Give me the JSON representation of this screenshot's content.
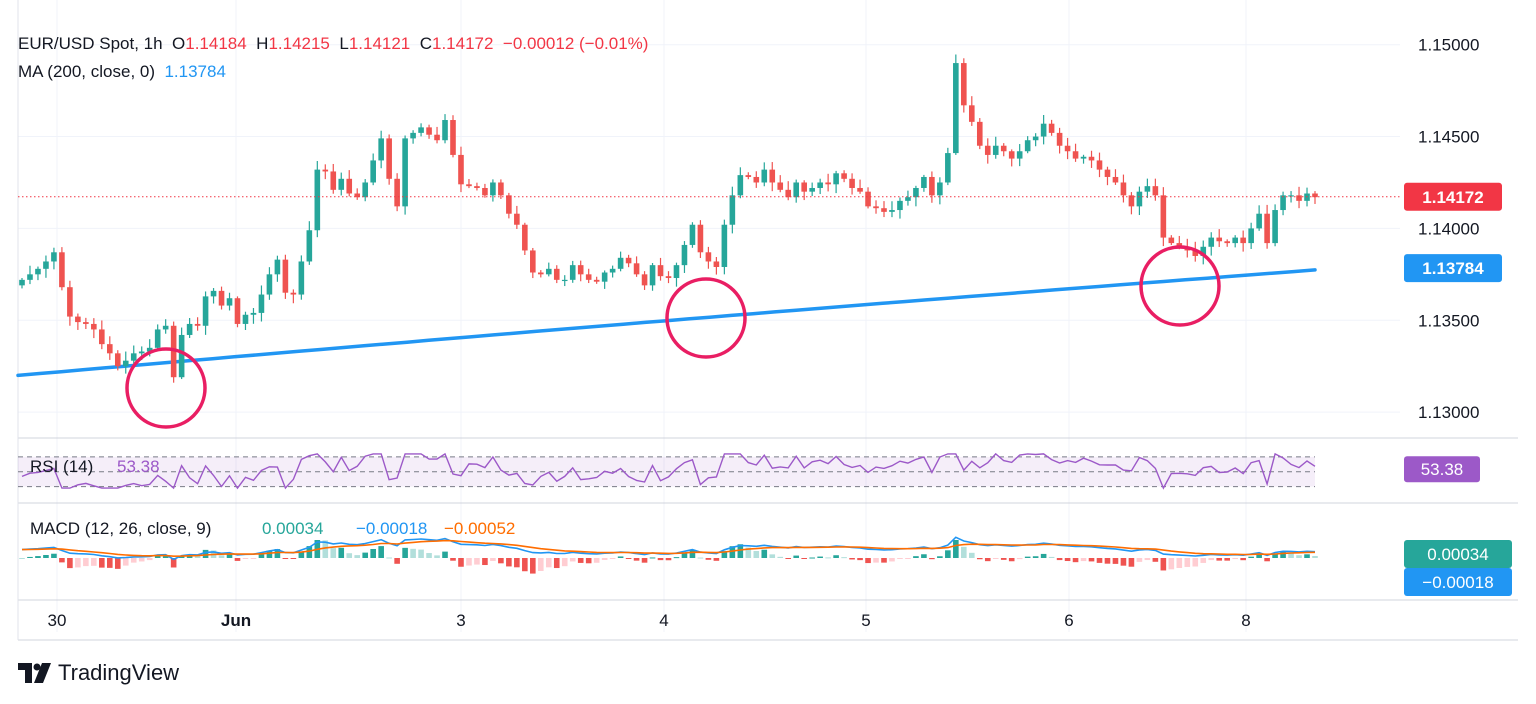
{
  "header": {
    "symbol": "EUR/USD Spot, 1h",
    "o_label": "O",
    "o_value": "1.14184",
    "h_label": "H",
    "h_value": "1.14215",
    "l_label": "L",
    "l_value": "1.14121",
    "c_label": "C",
    "c_value": "1.14172",
    "change": "−0.00012 (−0.01%)",
    "ma_label": "MA (200, close, 0)",
    "ma_value": "1.13784"
  },
  "colors": {
    "up": "#26a69a",
    "down": "#ef5350",
    "ma": "#2196f3",
    "rsi": "#9c59c8",
    "macd": "#2196f3",
    "signal": "#ff6d00",
    "circle": "#e91e63",
    "price_tag": "#f23645"
  },
  "brand": {
    "name": "TradingView"
  },
  "chart_data": [
    {
      "type": "candlestick",
      "title": "EUR/USD Spot, 1h",
      "x_ticks": [
        "30",
        "Jun",
        "3",
        "4",
        "5",
        "6",
        "8"
      ],
      "y_ticks": [
        "1.15000",
        "1.14500",
        "1.14000",
        "1.13500",
        "1.13000"
      ],
      "ylim": [
        1.1287,
        1.1508
      ],
      "last_price": "1.14172",
      "ma_label": "1.13784",
      "close_series": [
        1.1372,
        1.1375,
        1.1378,
        1.1382,
        1.1387,
        1.1368,
        1.1352,
        1.1349,
        1.1348,
        1.1345,
        1.1337,
        1.1332,
        1.1325,
        1.1328,
        1.1332,
        1.1333,
        1.1335,
        1.1345,
        1.1347,
        1.1319,
        1.1342,
        1.1348,
        1.1347,
        1.1363,
        1.1366,
        1.1358,
        1.1362,
        1.1348,
        1.1353,
        1.1354,
        1.1364,
        1.1375,
        1.1383,
        1.1365,
        1.1364,
        1.1382,
        1.1399,
        1.1432,
        1.1431,
        1.1421,
        1.1427,
        1.1419,
        1.1417,
        1.1425,
        1.1437,
        1.1449,
        1.1427,
        1.1412,
        1.1449,
        1.1452,
        1.1455,
        1.1451,
        1.1448,
        1.1459,
        1.144,
        1.1424,
        1.1423,
        1.1422,
        1.1418,
        1.1425,
        1.1418,
        1.1408,
        1.1402,
        1.1388,
        1.1376,
        1.1375,
        1.1378,
        1.1372,
        1.1372,
        1.138,
        1.1375,
        1.1372,
        1.1371,
        1.1376,
        1.1378,
        1.1384,
        1.1381,
        1.1375,
        1.1369,
        1.138,
        1.1374,
        1.1373,
        1.138,
        1.1391,
        1.1402,
        1.1387,
        1.1382,
        1.1379,
        1.1402,
        1.1418,
        1.1429,
        1.1428,
        1.1425,
        1.1432,
        1.1425,
        1.1421,
        1.1417,
        1.1425,
        1.142,
        1.1422,
        1.1425,
        1.1424,
        1.143,
        1.1427,
        1.1422,
        1.142,
        1.1412,
        1.1411,
        1.1409,
        1.141,
        1.1415,
        1.1417,
        1.1422,
        1.1428,
        1.1418,
        1.1425,
        1.1441,
        1.149,
        1.1467,
        1.1458,
        1.1445,
        1.144,
        1.1445,
        1.1442,
        1.1438,
        1.1442,
        1.1448,
        1.145,
        1.1457,
        1.1452,
        1.1445,
        1.1442,
        1.1438,
        1.1439,
        1.1437,
        1.1432,
        1.1428,
        1.1425,
        1.1418,
        1.1412,
        1.142,
        1.1423,
        1.1418,
        1.1395,
        1.1392,
        1.139,
        1.1388,
        1.1385,
        1.139,
        1.1395,
        1.1393,
        1.1392,
        1.1395,
        1.1392,
        1.14,
        1.1408,
        1.1392,
        1.141,
        1.1418,
        1.1418,
        1.1415,
        1.1419,
        1.1417
      ],
      "ma_series": {
        "start": 1.132,
        "end": 1.13784
      },
      "annotations": [
        "circle near 30 May/1 Jun MA touch",
        "circle on 4 Jun MA touch",
        "circle on 6 Jun MA touch"
      ]
    },
    {
      "type": "line",
      "title": "RSI (14)",
      "label": "RSI (14)",
      "value": "53.38",
      "levels": [
        70,
        50,
        30
      ]
    },
    {
      "type": "macd",
      "title": "MACD (12, 26, close, 9)",
      "label": "MACD (12, 26, close, 9)",
      "hist_value": "0.00034",
      "macd_value": "−0.00018",
      "signal_value": "−0.00052",
      "tag_hist": "0.00034",
      "tag_macd": "−0.00018"
    }
  ]
}
